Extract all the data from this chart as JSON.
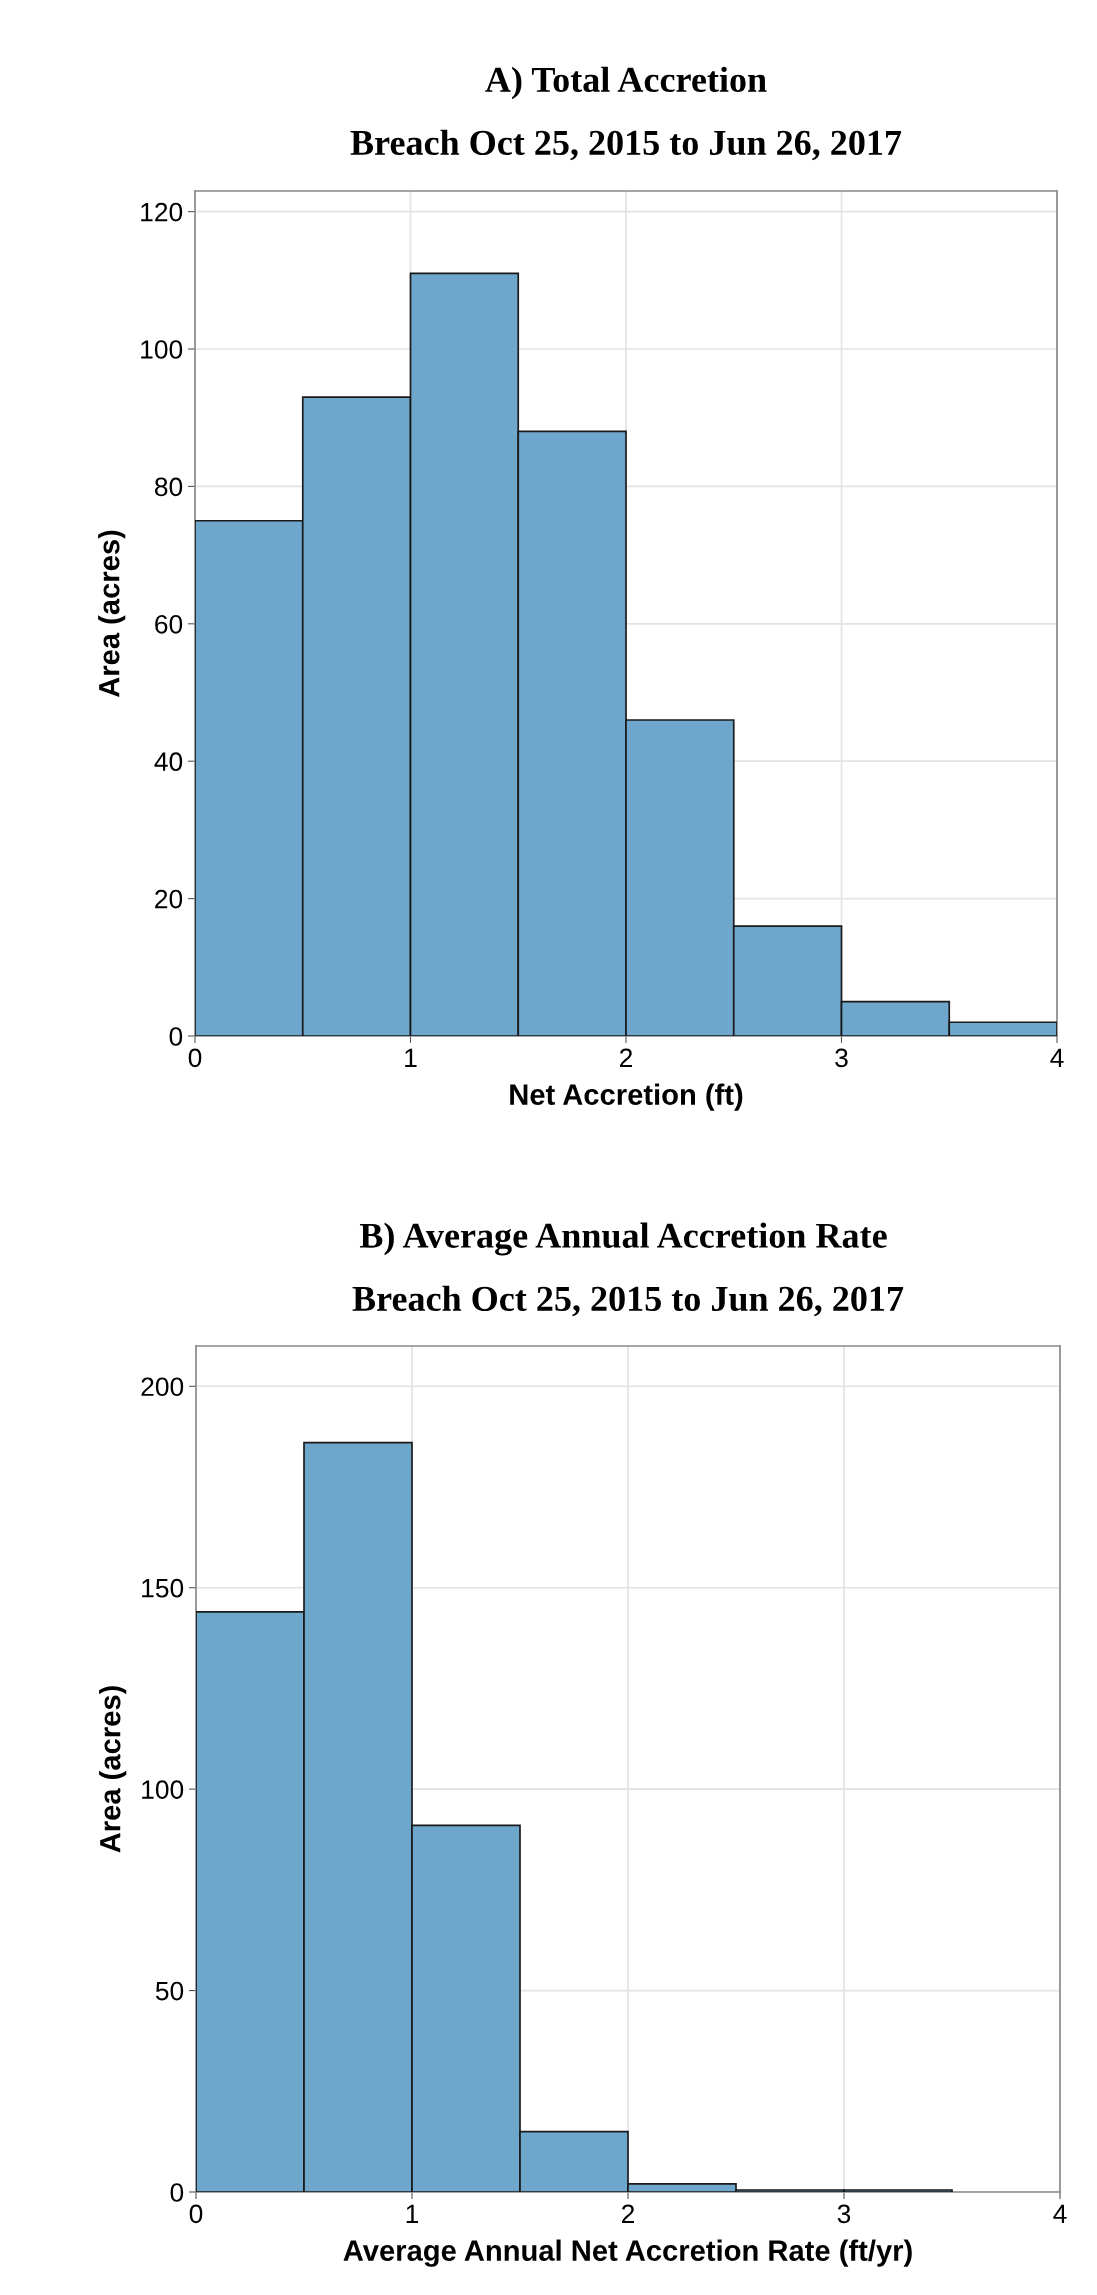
{
  "chart_data": [
    {
      "type": "histogram",
      "title": "A) Total Accretion",
      "subtitle": "Breach Oct 25, 2015 to Jun 26, 2017",
      "xlabel": "Net Accretion (ft)",
      "ylabel": "Area (acres)",
      "bins": [
        0,
        0.5,
        1,
        1.5,
        2,
        2.5,
        3,
        3.5,
        4
      ],
      "values": [
        75,
        93,
        111,
        88,
        46,
        16,
        5,
        2
      ],
      "color": "#6ea6cc",
      "xlim": [
        0,
        4
      ],
      "xticks": [
        0,
        1,
        2,
        3,
        4
      ],
      "ylim": [
        0,
        123
      ],
      "yticks": [
        0,
        20,
        40,
        60,
        80,
        100,
        120
      ],
      "grid": true
    },
    {
      "type": "histogram",
      "title": "B) Average Annual Accretion Rate ",
      "subtitle": "Breach Oct 25, 2015 to Jun 26, 2017",
      "xlabel": "Average Annual Net Accretion Rate (ft/yr)",
      "ylabel": "Area (acres)",
      "bins": [
        0,
        0.5,
        1,
        1.5,
        2,
        2.5,
        3,
        3.5
      ],
      "values": [
        144,
        186,
        91,
        15,
        2,
        0.5,
        0.5
      ],
      "color": "#6ea6cc",
      "xlim": [
        0,
        4
      ],
      "xticks": [
        0,
        1,
        2,
        3,
        4
      ],
      "ylim": [
        0,
        210
      ],
      "yticks": [
        0,
        50,
        100,
        150,
        200
      ],
      "grid": true
    }
  ]
}
